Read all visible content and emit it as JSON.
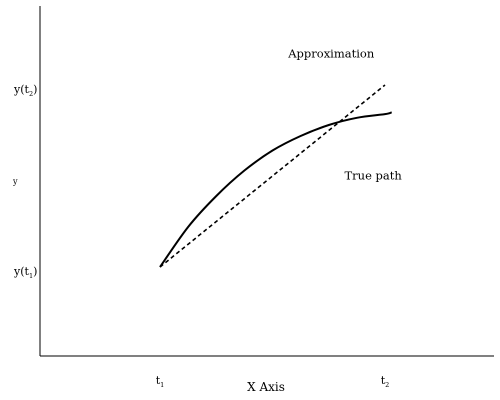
{
  "chart_data": {
    "type": "line",
    "title": "",
    "xlabel": "X Axis",
    "ylabel": "y",
    "x_ticks": [
      {
        "main": "t",
        "sub": "1",
        "value": 1
      },
      {
        "main": "t",
        "sub": "2",
        "value": 2
      }
    ],
    "y_ticks": [
      {
        "main": "y(t",
        "sub": "1",
        "close": ")",
        "value": 1
      },
      {
        "main": "y(t",
        "sub": "2",
        "close": ")",
        "value": 2
      }
    ],
    "xlim": [
      0.45,
      2.45
    ],
    "ylim": [
      0.5,
      2.5
    ],
    "series": [
      {
        "name": "True path",
        "style": "solid",
        "color": "#000000",
        "x": [
          1.0,
          1.125,
          1.25,
          1.375,
          1.5,
          1.625,
          1.75,
          1.875,
          2.0,
          2.03
        ],
        "y": [
          1.0,
          1.22,
          1.39,
          1.53,
          1.64,
          1.72,
          1.78,
          1.82,
          1.84,
          1.85
        ]
      },
      {
        "name": "Approximation",
        "style": "dashed",
        "color": "#000000",
        "x": [
          1.0,
          2.0
        ],
        "y": [
          1.0,
          2.0
        ]
      }
    ],
    "annotations": [
      {
        "text": "Approximation",
        "x": 1.57,
        "y": 2.15
      },
      {
        "text": "True path",
        "x": 1.82,
        "y": 1.48
      }
    ],
    "grid": false,
    "legend": "none"
  }
}
